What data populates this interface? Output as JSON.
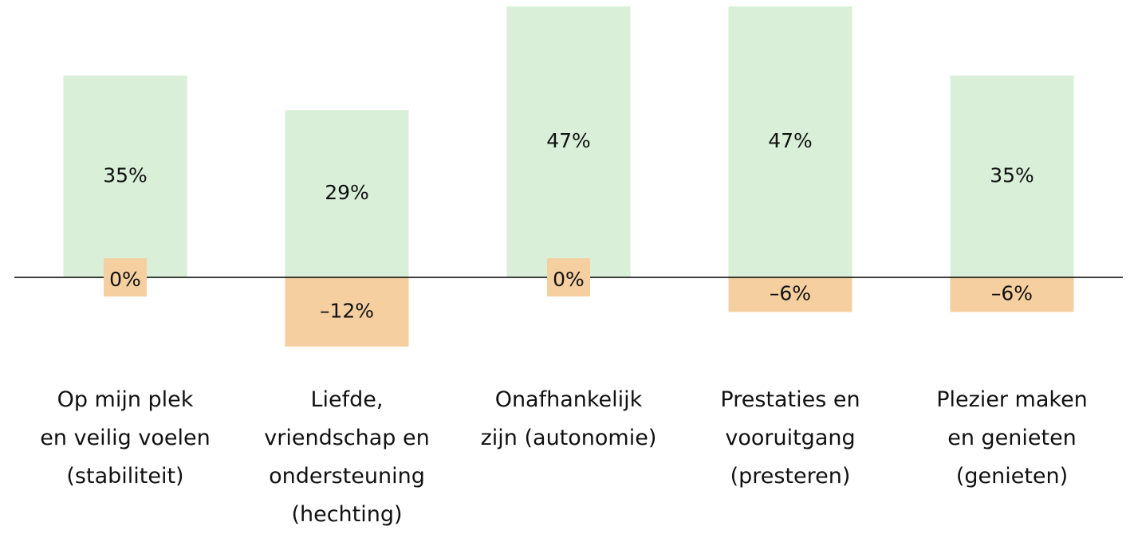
{
  "chart_data": {
    "type": "bar",
    "categories": [
      "Op mijn plek\nen veilig voelen\n(stabiliteit)",
      "Liefde,\nvriendschap en\nondersteuning\n(hechting)",
      "Onafhankelijk\nzijn (autonomie)",
      "Prestaties en\nvooruitgang\n(presteren)",
      "Plezier maken\nen genieten\n(genieten)"
    ],
    "series": [
      {
        "color": "#d9efd8",
        "values": [
          35,
          29,
          47,
          47,
          35
        ],
        "value_labels": [
          "35%",
          "29%",
          "47%",
          "47%",
          "35%"
        ]
      },
      {
        "color": "#f6cfa0",
        "values": [
          0,
          -12,
          0,
          -6,
          -6
        ],
        "value_labels": [
          "0%",
          "–12%",
          "0%",
          "–6%",
          "–6%"
        ]
      }
    ],
    "ylim": [
      -15,
      47
    ]
  }
}
